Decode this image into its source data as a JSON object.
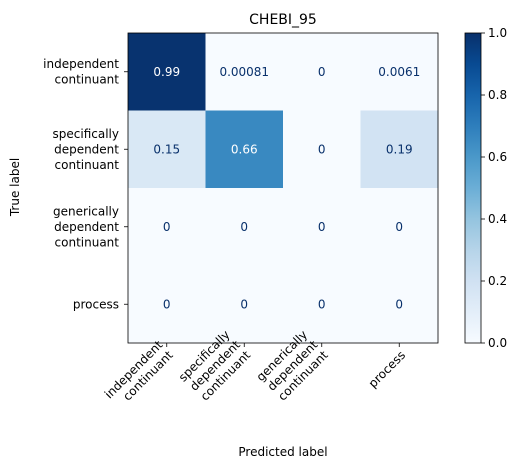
{
  "chart_data": {
    "type": "heatmap",
    "title": "CHEBI_95",
    "xlabel": "Predicted label",
    "ylabel": "True label",
    "row_labels": [
      [
        "independent",
        "continuant"
      ],
      [
        "specifically",
        "dependent",
        "continuant"
      ],
      [
        "generically",
        "dependent",
        "continuant"
      ],
      [
        "process"
      ]
    ],
    "col_labels": [
      [
        "independent",
        "continuant"
      ],
      [
        "specifically",
        "dependent",
        "continuant"
      ],
      [
        "generically",
        "dependent",
        "continuant"
      ],
      [
        "process"
      ]
    ],
    "values": [
      [
        0.99,
        0.00081,
        0,
        0.0061
      ],
      [
        0.15,
        0.66,
        0,
        0.19
      ],
      [
        0,
        0,
        0,
        0
      ],
      [
        0,
        0,
        0,
        0
      ]
    ],
    "value_labels": [
      [
        "0.99",
        "0.00081",
        "0",
        "0.0061"
      ],
      [
        "0.15",
        "0.66",
        "0",
        "0.19"
      ],
      [
        "0",
        "0",
        "0",
        "0"
      ],
      [
        "0",
        "0",
        "0",
        "0"
      ]
    ],
    "colormap": "Blues",
    "vmin": 0,
    "vmax": 1,
    "colorbar_ticks": [
      "0.0",
      "0.2",
      "0.4",
      "0.6",
      "0.8",
      "1.0"
    ],
    "colorbar_tick_values": [
      0,
      0.2,
      0.4,
      0.6,
      0.8,
      1.0
    ],
    "colors": {
      "light_text": "#ffffff",
      "dark_text": "#08306b"
    }
  }
}
